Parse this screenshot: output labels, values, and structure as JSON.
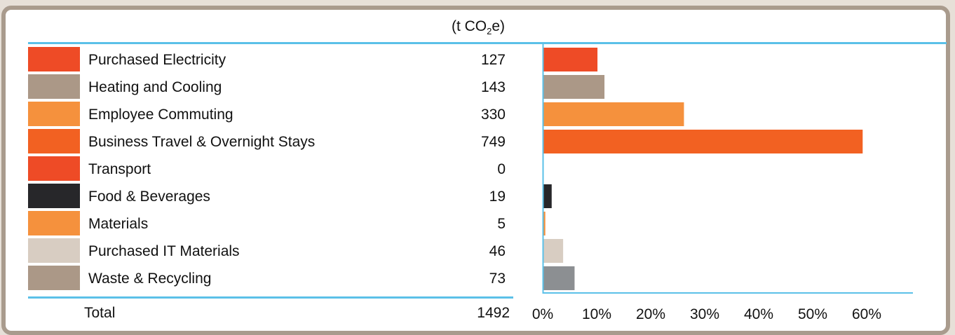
{
  "unit": {
    "prefix": "(t CO",
    "sub": "2",
    "suffix": "e)"
  },
  "total": {
    "label": "Total",
    "value": "1492"
  },
  "chart_data": {
    "type": "bar",
    "orientation": "horizontal",
    "categories": [
      "Purchased Electricity",
      "Heating and Cooling",
      "Employee Commuting",
      "Business Travel & Overnight Stays",
      "Transport",
      "Food & Beverages",
      "Materials",
      "Purchased IT Materials",
      "Waste & Recycling"
    ],
    "values": [
      127,
      143,
      330,
      749,
      0,
      19,
      5,
      46,
      73
    ],
    "value_labels": [
      "127",
      "143",
      "330",
      "749",
      "0",
      "19",
      "5",
      "46",
      "73"
    ],
    "bar_percent": [
      8.5,
      9.6,
      22.1,
      50.2,
      0,
      1.3,
      0.3,
      3.1,
      4.9
    ],
    "colors": [
      "#ee4b26",
      "#ab9887",
      "#f5913d",
      "#f26122",
      "#ee4b26",
      "#27272a",
      "#f5913d",
      "#d8cdc2",
      "#ab9887"
    ],
    "bar_colors": [
      "#ee4b26",
      "#ab9887",
      "#f5913d",
      "#f26122",
      "#ee4b26",
      "#27272a",
      "#f5913d",
      "#d8cdc2",
      "#8c8f92"
    ],
    "xticks": [
      "0%",
      "10%",
      "20%",
      "30%",
      "40%",
      "50%",
      "60%"
    ],
    "xlim": [
      0,
      60
    ],
    "axis_color": "#5bc0e8"
  }
}
